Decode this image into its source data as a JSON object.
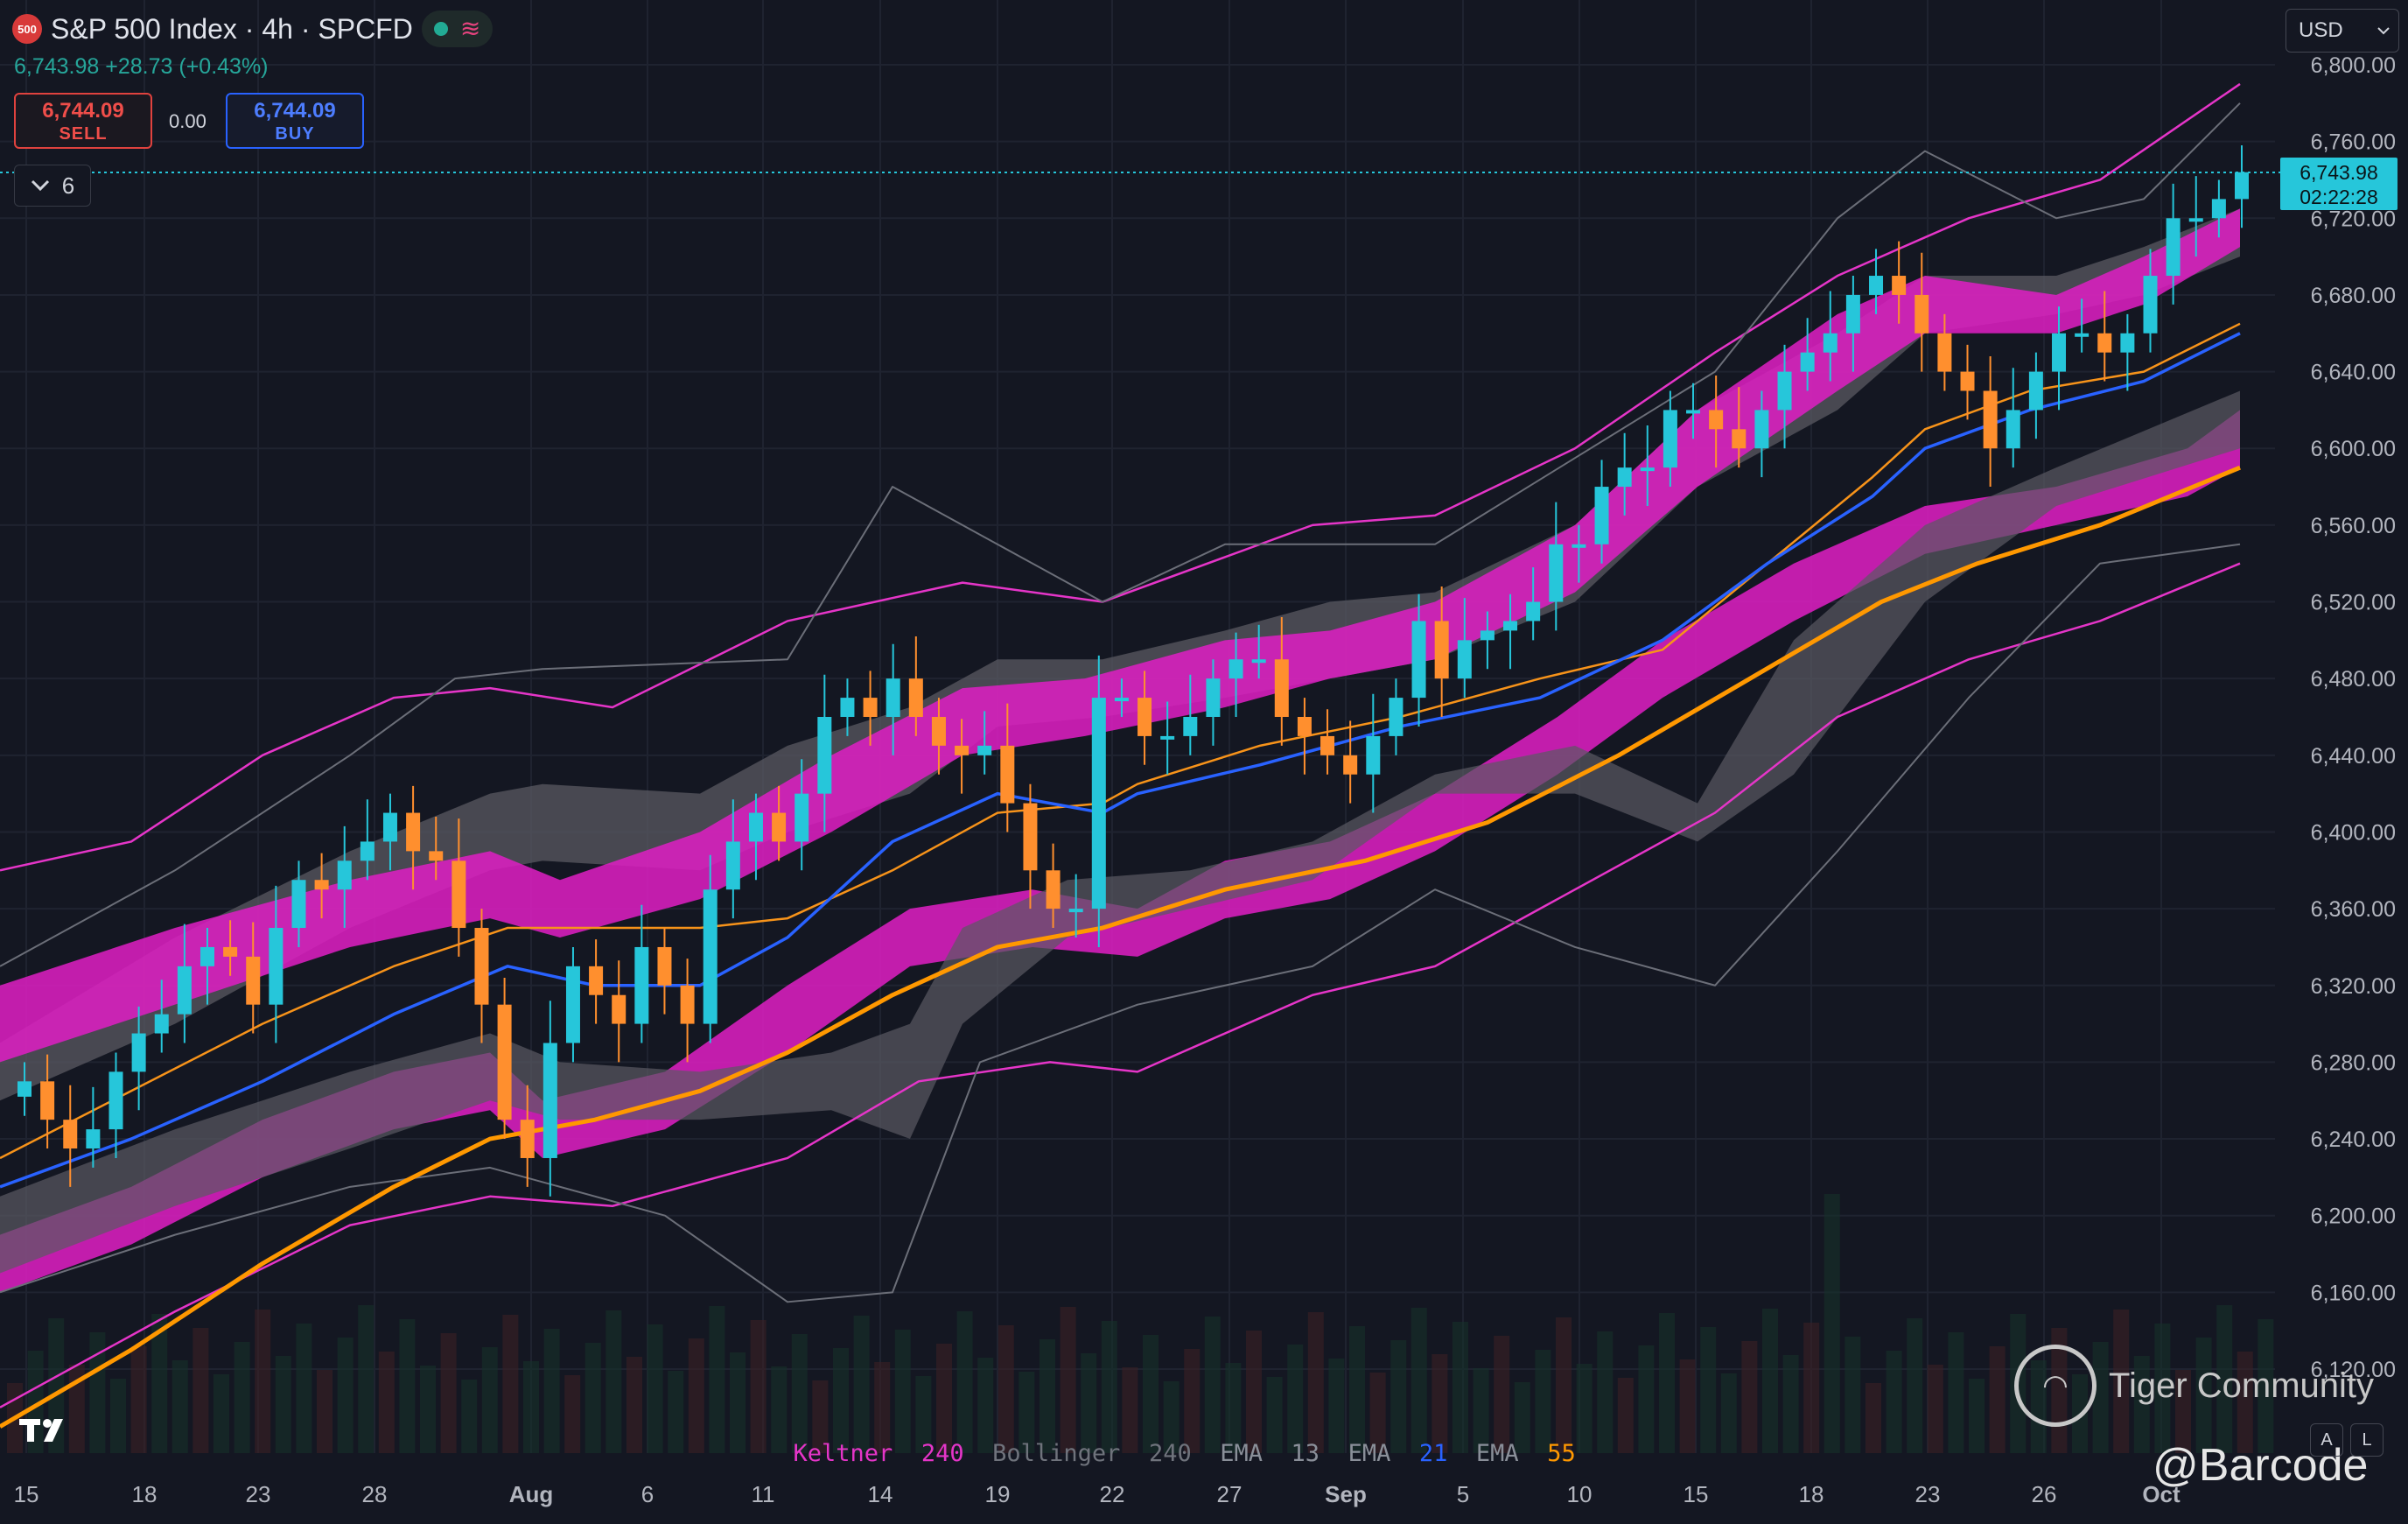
{
  "header": {
    "symbol_badge": "500",
    "title": "S&P 500 Index · 4h · SPCFD",
    "change_line": "6,743.98 +28.73 (+0.43%)",
    "status_icon": "market-open-dot-icon",
    "wave_icon": "indicator-wave-icon"
  },
  "trade": {
    "sell_price": "6,744.09",
    "sell_label": "SELL",
    "spread": "0.00",
    "buy_price": "6,744.09",
    "buy_label": "BUY"
  },
  "indicators_toggle": {
    "count": "6"
  },
  "currency": {
    "selected": "USD"
  },
  "last_price_tag": {
    "price": "6,743.98",
    "countdown": "02:22:28"
  },
  "legend": [
    {
      "name": "Keltner",
      "param": "240",
      "color": "#e535c8"
    },
    {
      "name": "Bollinger",
      "param": "240",
      "color": "#777777"
    },
    {
      "name": "EMA",
      "param": "13",
      "color": "#8a8f99"
    },
    {
      "name": "EMA",
      "param": "21",
      "color": "#2962ff"
    },
    {
      "name": "EMA",
      "param": "55",
      "color": "#ff9800"
    }
  ],
  "watermark": {
    "brand": "Tiger Community",
    "handle": "@Barcode"
  },
  "side_buttons": [
    "A",
    "L"
  ],
  "chart_data": {
    "type": "line",
    "title": "S&P 500 Index · 4h · SPCFD",
    "xlabel": "",
    "ylabel": "",
    "ylim": [
      6080,
      6820
    ],
    "y_ticks": [
      "6,800.00",
      "6,760.00",
      "6,720.00",
      "6,680.00",
      "6,640.00",
      "6,600.00",
      "6,560.00",
      "6,520.00",
      "6,480.00",
      "6,440.00",
      "6,400.00",
      "6,360.00",
      "6,320.00",
      "6,280.00",
      "6,240.00",
      "6,200.00",
      "6,160.00",
      "6,120.00"
    ],
    "x_ticks": [
      "15",
      "18",
      "23",
      "28",
      "Aug",
      "6",
      "11",
      "14",
      "19",
      "22",
      "27",
      "Sep",
      "5",
      "10",
      "15",
      "18",
      "23",
      "26",
      "Oct"
    ],
    "grid": true,
    "candles_close_approx": [
      6270,
      6250,
      6235,
      6245,
      6275,
      6295,
      6305,
      6330,
      6340,
      6335,
      6310,
      6350,
      6375,
      6370,
      6385,
      6395,
      6410,
      6390,
      6385,
      6350,
      6310,
      6250,
      6230,
      6290,
      6330,
      6315,
      6300,
      6340,
      6320,
      6300,
      6370,
      6395,
      6410,
      6395,
      6420,
      6460,
      6470,
      6460,
      6480,
      6460,
      6445,
      6440,
      6445,
      6415,
      6380,
      6360,
      6360,
      6470,
      6470,
      6450,
      6450,
      6460,
      6480,
      6490,
      6490,
      6460,
      6450,
      6440,
      6430,
      6450,
      6470,
      6510,
      6480,
      6500,
      6505,
      6510,
      6520,
      6550,
      6550,
      6580,
      6590,
      6590,
      6620,
      6620,
      6610,
      6600,
      6620,
      6640,
      6650,
      6660,
      6680,
      6690,
      6680,
      6660,
      6640,
      6630,
      6600,
      6620,
      6640,
      6660,
      6660,
      6650,
      6660,
      6690,
      6720,
      6720,
      6730,
      6744
    ],
    "series": [
      {
        "name": "EMA 13",
        "values": [
          6230,
          6250,
          6270,
          6290,
          6320,
          6340,
          6350,
          6320,
          6330,
          6340,
          6360,
          6380,
          6410,
          6420,
          6440,
          6430,
          6430,
          6440,
          6440,
          6450,
          6470,
          6480,
          6490,
          6500,
          6500,
          6520,
          6540,
          6570,
          6600,
          6610,
          6620,
          6640,
          6650,
          6650,
          6640,
          6650,
          6680,
          6700,
          6720
        ]
      },
      {
        "name": "EMA 21",
        "values": [
          6210,
          6230,
          6250,
          6270,
          6300,
          6320,
          6330,
          6300,
          6300,
          6310,
          6340,
          6360,
          6390,
          6400,
          6410,
          6400,
          6410,
          6430,
          6440,
          6450,
          6460,
          6470,
          6480,
          6490,
          6490,
          6500,
          6520,
          6550,
          6580,
          6590,
          6610,
          6620,
          6630,
          6640,
          6640,
          6650,
          6660,
          6670,
          6700
        ]
      },
      {
        "name": "EMA 55",
        "values": [
          6100,
          6130,
          6160,
          6190,
          6220,
          6250,
          6260,
          6270,
          6280,
          6300,
          6320,
          6340,
          6350,
          6360,
          6370,
          6380,
          6390,
          6400,
          6400,
          6410,
          6420,
          6440,
          6460,
          6480,
          6500,
          6520,
          6530,
          6550,
          6560,
          6570,
          6580,
          6610
        ]
      }
    ]
  }
}
